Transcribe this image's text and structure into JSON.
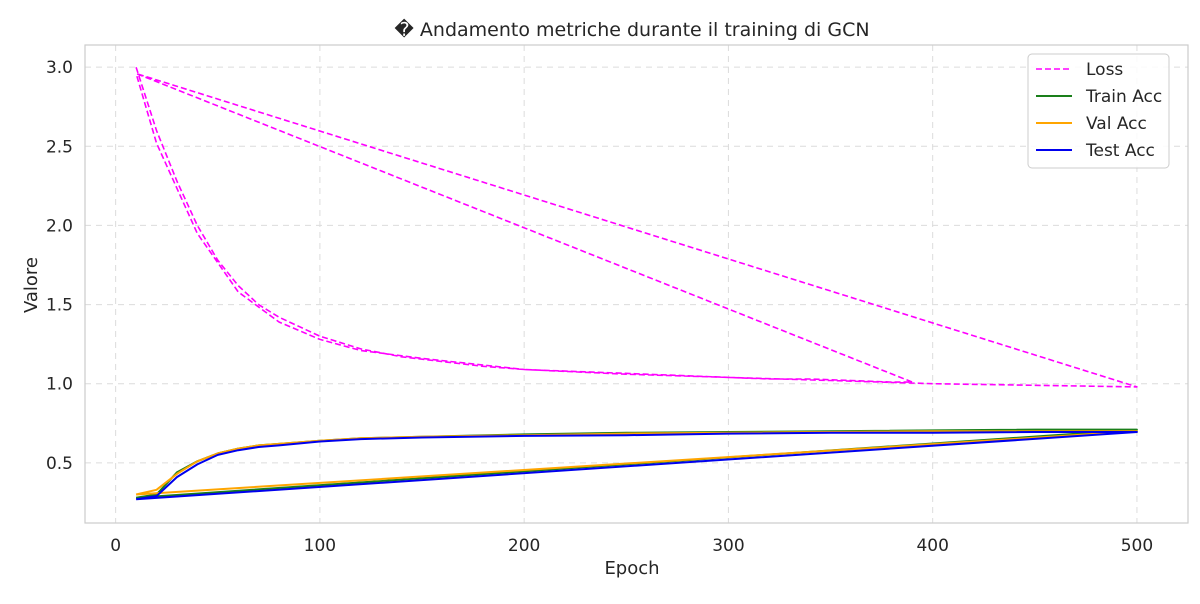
{
  "chart_data": {
    "type": "line",
    "title": "� Andamento metriche durante il training di GCN",
    "xlabel": "Epoch",
    "ylabel": "Valore",
    "xlim": [
      -15,
      525
    ],
    "ylim": [
      0.12,
      3.14
    ],
    "xticks": [
      0,
      100,
      200,
      300,
      400,
      500
    ],
    "xtick_labels": [
      "0",
      "100",
      "200",
      "300",
      "400",
      "500"
    ],
    "yticks": [
      0.5,
      1.0,
      1.5,
      2.0,
      2.5,
      3.0
    ],
    "ytick_labels": [
      "0.5",
      "1.0",
      "1.5",
      "2.0",
      "2.5",
      "3.0"
    ],
    "grid": true,
    "legend_position": "top-right",
    "series": [
      {
        "name": "Loss",
        "color": "#ff00ff",
        "style": "dashed",
        "x": [
          10,
          20,
          30,
          40,
          50,
          60,
          70,
          80,
          90,
          100,
          120,
          140,
          160,
          180,
          200,
          220,
          240,
          260,
          280,
          300,
          320,
          340,
          360,
          380,
          390,
          10,
          500,
          400,
          350,
          300,
          250,
          200,
          150,
          120,
          100,
          80,
          60,
          40,
          20,
          10
        ],
        "y": [
          3.0,
          2.6,
          2.28,
          2.0,
          1.78,
          1.62,
          1.5,
          1.42,
          1.36,
          1.3,
          1.22,
          1.17,
          1.14,
          1.11,
          1.09,
          1.08,
          1.07,
          1.06,
          1.05,
          1.04,
          1.03,
          1.03,
          1.02,
          1.01,
          1.01,
          2.96,
          0.98,
          1.0,
          1.02,
          1.04,
          1.06,
          1.09,
          1.16,
          1.21,
          1.28,
          1.39,
          1.58,
          1.95,
          2.52,
          2.96
        ]
      },
      {
        "name": "Train Acc",
        "color": "#1a7f1a",
        "style": "solid",
        "x": [
          10,
          20,
          30,
          40,
          50,
          60,
          70,
          80,
          100,
          120,
          150,
          200,
          250,
          300,
          350,
          400,
          450,
          500,
          10
        ],
        "y": [
          0.28,
          0.3,
          0.44,
          0.51,
          0.56,
          0.59,
          0.61,
          0.62,
          0.64,
          0.655,
          0.665,
          0.68,
          0.69,
          0.695,
          0.7,
          0.705,
          0.71,
          0.71,
          0.28
        ]
      },
      {
        "name": "Val Acc",
        "color": "#ffa500",
        "style": "solid",
        "x": [
          10,
          20,
          30,
          40,
          50,
          60,
          70,
          80,
          100,
          120,
          150,
          200,
          250,
          300,
          350,
          400,
          450,
          500,
          10
        ],
        "y": [
          0.3,
          0.33,
          0.43,
          0.51,
          0.56,
          0.59,
          0.61,
          0.62,
          0.64,
          0.655,
          0.665,
          0.675,
          0.685,
          0.69,
          0.695,
          0.7,
          0.7,
          0.7,
          0.3
        ]
      },
      {
        "name": "Test Acc",
        "color": "#0000ee",
        "style": "solid",
        "x": [
          10,
          20,
          30,
          40,
          50,
          60,
          70,
          80,
          100,
          120,
          150,
          200,
          250,
          300,
          350,
          400,
          450,
          500,
          10
        ],
        "y": [
          0.27,
          0.29,
          0.41,
          0.49,
          0.55,
          0.58,
          0.6,
          0.61,
          0.635,
          0.65,
          0.66,
          0.67,
          0.675,
          0.685,
          0.69,
          0.69,
          0.695,
          0.695,
          0.27
        ]
      }
    ]
  }
}
